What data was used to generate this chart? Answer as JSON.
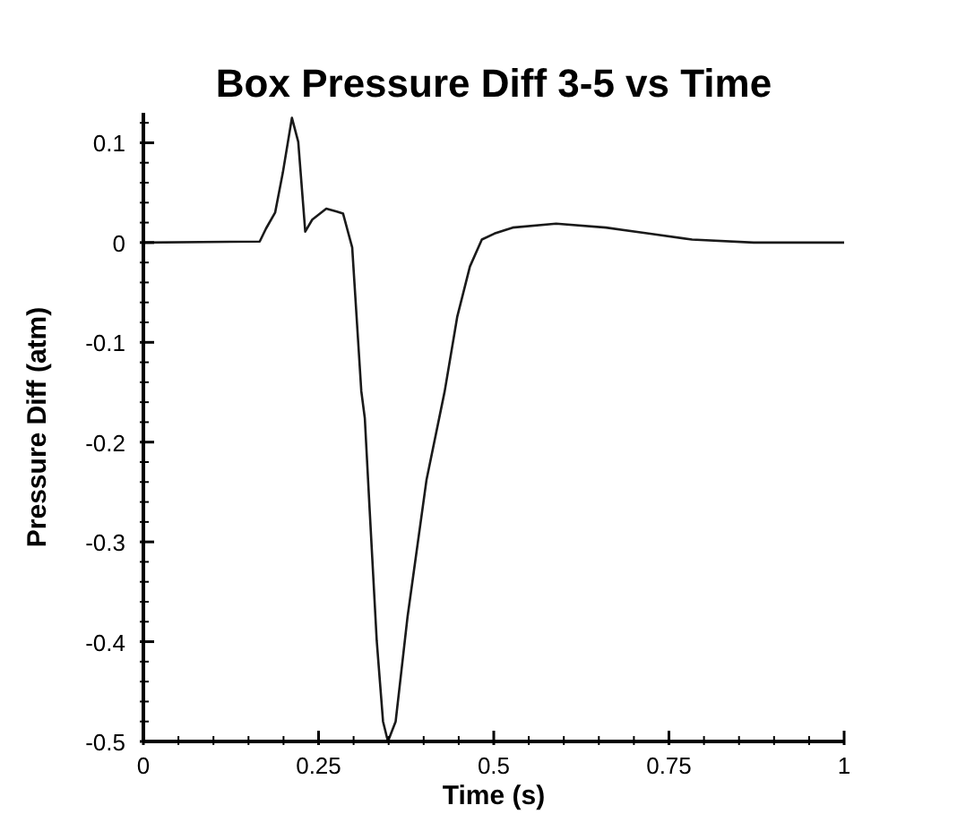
{
  "chart_data": {
    "type": "line",
    "title": "Box Pressure Diff 3-5 vs Time",
    "xlabel": "Time (s)",
    "ylabel": "Pressure Diff (atm)",
    "x": [
      0,
      0.166,
      0.175,
      0.188,
      0.199,
      0.212,
      0.221,
      0.231,
      0.241,
      0.261,
      0.276,
      0.285,
      0.298,
      0.311,
      0.316,
      0.323,
      0.333,
      0.342,
      0.349,
      0.36,
      0.377,
      0.404,
      0.43,
      0.448,
      0.466,
      0.483,
      0.501,
      0.527,
      0.589,
      0.66,
      0.721,
      0.783,
      0.871,
      1
    ],
    "series": [
      {
        "color": "#1a1a1a",
        "values": [
          0,
          0.001,
          0.014,
          0.03,
          0.07,
          0.125,
          0.101,
          0.011,
          0.023,
          0.034,
          0.031,
          0.029,
          -0.005,
          -0.149,
          -0.176,
          -0.269,
          -0.399,
          -0.48,
          -0.5,
          -0.48,
          -0.375,
          -0.238,
          -0.149,
          -0.074,
          -0.024,
          0.003,
          0.009,
          0.015,
          0.019,
          0.015,
          0.009,
          0.003,
          0,
          0
        ]
      }
    ],
    "xlim": [
      0,
      1
    ],
    "ylim": [
      -0.5,
      0.13
    ],
    "xticks": [
      0,
      {
        "value": 0.05,
        "label": null
      },
      {
        "value": 0.1,
        "label": null
      },
      {
        "value": 0.15,
        "label": null
      },
      {
        "value": 0.2,
        "label": null
      },
      0.25,
      {
        "value": 0.3,
        "label": null
      },
      {
        "value": 0.35,
        "label": null
      },
      {
        "value": 0.4,
        "label": null
      },
      {
        "value": 0.45,
        "label": null
      },
      0.5,
      {
        "value": 0.55,
        "label": null
      },
      {
        "value": 0.6,
        "label": null
      },
      {
        "value": 0.65,
        "label": null
      },
      {
        "value": 0.7,
        "label": null
      },
      0.75,
      {
        "value": 0.8,
        "label": null
      },
      {
        "value": 0.85,
        "label": null
      },
      {
        "value": 0.9,
        "label": null
      },
      {
        "value": 0.95,
        "label": null
      },
      1
    ],
    "yticks": [
      -0.5,
      {
        "value": -0.48,
        "label": null
      },
      {
        "value": -0.46,
        "label": null
      },
      {
        "value": -0.44,
        "label": null
      },
      {
        "value": -0.42,
        "label": null
      },
      -0.4,
      {
        "value": -0.38,
        "label": null
      },
      {
        "value": -0.36,
        "label": null
      },
      {
        "value": -0.34,
        "label": null
      },
      {
        "value": -0.32,
        "label": null
      },
      -0.3,
      {
        "value": -0.28,
        "label": null
      },
      {
        "value": -0.26,
        "label": null
      },
      {
        "value": -0.24,
        "label": null
      },
      {
        "value": -0.22,
        "label": null
      },
      -0.2,
      {
        "value": -0.18,
        "label": null
      },
      {
        "value": -0.16,
        "label": null
      },
      {
        "value": -0.14,
        "label": null
      },
      {
        "value": -0.12,
        "label": null
      },
      -0.1,
      {
        "value": -0.08,
        "label": null
      },
      {
        "value": -0.06,
        "label": null
      },
      {
        "value": -0.04,
        "label": null
      },
      {
        "value": -0.02,
        "label": null
      },
      0,
      {
        "value": 0.02,
        "label": null
      },
      {
        "value": 0.04,
        "label": null
      },
      {
        "value": 0.06,
        "label": null
      },
      {
        "value": 0.08,
        "label": null
      },
      0.1,
      {
        "value": 0.12,
        "label": null
      }
    ],
    "grid": false,
    "legend": false,
    "marker": "none",
    "line_style": "solid"
  }
}
